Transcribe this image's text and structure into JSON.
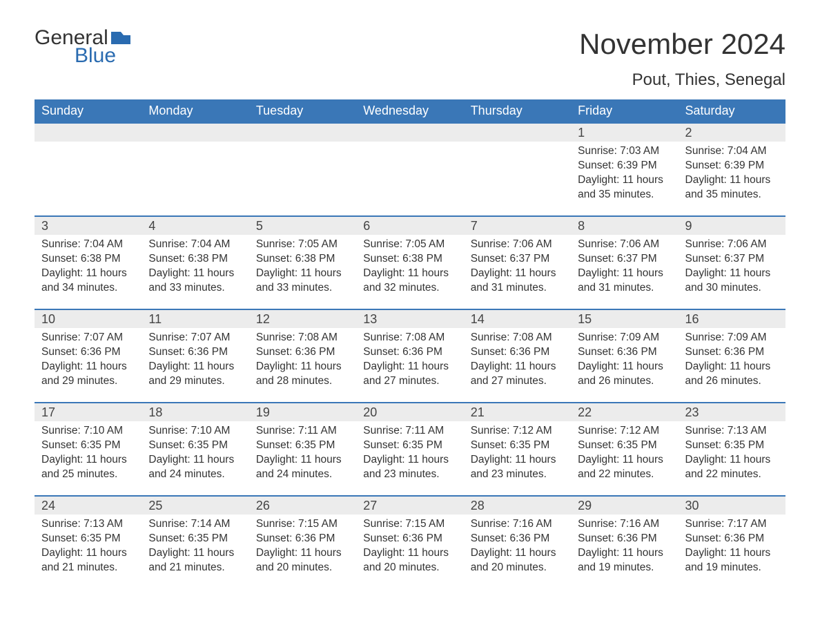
{
  "logo": {
    "word1": "General",
    "word2": "Blue",
    "word1_color": "#333333",
    "word2_color": "#2a6bb0",
    "flag_color": "#2a6bb0"
  },
  "title": "November 2024",
  "subtitle": "Pout, Thies, Senegal",
  "colors": {
    "header_bg": "#3a77b7",
    "header_text": "#ffffff",
    "daynum_bg": "#ececec",
    "row_border": "#3a77b7",
    "body_text": "#333333",
    "page_bg": "#ffffff"
  },
  "fonts": {
    "title_size_pt": 32,
    "subtitle_size_pt": 18,
    "header_size_pt": 14,
    "cell_size_pt": 12
  },
  "weekdays": [
    "Sunday",
    "Monday",
    "Tuesday",
    "Wednesday",
    "Thursday",
    "Friday",
    "Saturday"
  ],
  "labels": {
    "sunrise": "Sunrise:",
    "sunset": "Sunset:",
    "daylight": "Daylight:"
  },
  "weeks": [
    [
      null,
      null,
      null,
      null,
      null,
      {
        "n": 1,
        "sunrise": "7:03 AM",
        "sunset": "6:39 PM",
        "daylight": "11 hours and 35 minutes."
      },
      {
        "n": 2,
        "sunrise": "7:04 AM",
        "sunset": "6:39 PM",
        "daylight": "11 hours and 35 minutes."
      }
    ],
    [
      {
        "n": 3,
        "sunrise": "7:04 AM",
        "sunset": "6:38 PM",
        "daylight": "11 hours and 34 minutes."
      },
      {
        "n": 4,
        "sunrise": "7:04 AM",
        "sunset": "6:38 PM",
        "daylight": "11 hours and 33 minutes."
      },
      {
        "n": 5,
        "sunrise": "7:05 AM",
        "sunset": "6:38 PM",
        "daylight": "11 hours and 33 minutes."
      },
      {
        "n": 6,
        "sunrise": "7:05 AM",
        "sunset": "6:38 PM",
        "daylight": "11 hours and 32 minutes."
      },
      {
        "n": 7,
        "sunrise": "7:06 AM",
        "sunset": "6:37 PM",
        "daylight": "11 hours and 31 minutes."
      },
      {
        "n": 8,
        "sunrise": "7:06 AM",
        "sunset": "6:37 PM",
        "daylight": "11 hours and 31 minutes."
      },
      {
        "n": 9,
        "sunrise": "7:06 AM",
        "sunset": "6:37 PM",
        "daylight": "11 hours and 30 minutes."
      }
    ],
    [
      {
        "n": 10,
        "sunrise": "7:07 AM",
        "sunset": "6:36 PM",
        "daylight": "11 hours and 29 minutes."
      },
      {
        "n": 11,
        "sunrise": "7:07 AM",
        "sunset": "6:36 PM",
        "daylight": "11 hours and 29 minutes."
      },
      {
        "n": 12,
        "sunrise": "7:08 AM",
        "sunset": "6:36 PM",
        "daylight": "11 hours and 28 minutes."
      },
      {
        "n": 13,
        "sunrise": "7:08 AM",
        "sunset": "6:36 PM",
        "daylight": "11 hours and 27 minutes."
      },
      {
        "n": 14,
        "sunrise": "7:08 AM",
        "sunset": "6:36 PM",
        "daylight": "11 hours and 27 minutes."
      },
      {
        "n": 15,
        "sunrise": "7:09 AM",
        "sunset": "6:36 PM",
        "daylight": "11 hours and 26 minutes."
      },
      {
        "n": 16,
        "sunrise": "7:09 AM",
        "sunset": "6:36 PM",
        "daylight": "11 hours and 26 minutes."
      }
    ],
    [
      {
        "n": 17,
        "sunrise": "7:10 AM",
        "sunset": "6:35 PM",
        "daylight": "11 hours and 25 minutes."
      },
      {
        "n": 18,
        "sunrise": "7:10 AM",
        "sunset": "6:35 PM",
        "daylight": "11 hours and 24 minutes."
      },
      {
        "n": 19,
        "sunrise": "7:11 AM",
        "sunset": "6:35 PM",
        "daylight": "11 hours and 24 minutes."
      },
      {
        "n": 20,
        "sunrise": "7:11 AM",
        "sunset": "6:35 PM",
        "daylight": "11 hours and 23 minutes."
      },
      {
        "n": 21,
        "sunrise": "7:12 AM",
        "sunset": "6:35 PM",
        "daylight": "11 hours and 23 minutes."
      },
      {
        "n": 22,
        "sunrise": "7:12 AM",
        "sunset": "6:35 PM",
        "daylight": "11 hours and 22 minutes."
      },
      {
        "n": 23,
        "sunrise": "7:13 AM",
        "sunset": "6:35 PM",
        "daylight": "11 hours and 22 minutes."
      }
    ],
    [
      {
        "n": 24,
        "sunrise": "7:13 AM",
        "sunset": "6:35 PM",
        "daylight": "11 hours and 21 minutes."
      },
      {
        "n": 25,
        "sunrise": "7:14 AM",
        "sunset": "6:35 PM",
        "daylight": "11 hours and 21 minutes."
      },
      {
        "n": 26,
        "sunrise": "7:15 AM",
        "sunset": "6:36 PM",
        "daylight": "11 hours and 20 minutes."
      },
      {
        "n": 27,
        "sunrise": "7:15 AM",
        "sunset": "6:36 PM",
        "daylight": "11 hours and 20 minutes."
      },
      {
        "n": 28,
        "sunrise": "7:16 AM",
        "sunset": "6:36 PM",
        "daylight": "11 hours and 20 minutes."
      },
      {
        "n": 29,
        "sunrise": "7:16 AM",
        "sunset": "6:36 PM",
        "daylight": "11 hours and 19 minutes."
      },
      {
        "n": 30,
        "sunrise": "7:17 AM",
        "sunset": "6:36 PM",
        "daylight": "11 hours and 19 minutes."
      }
    ]
  ]
}
